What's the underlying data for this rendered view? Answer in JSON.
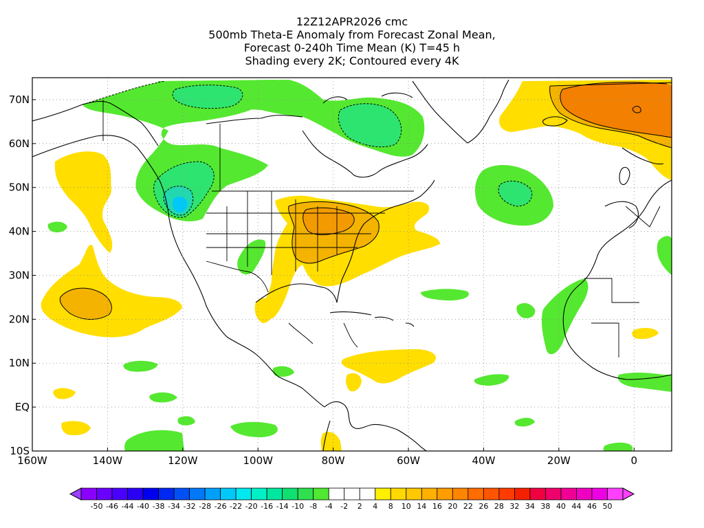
{
  "title": {
    "line1": "12Z12APR2026 cmc",
    "line2": "500mb Theta-E Anomaly from Forecast Zonal Mean,",
    "line3": "Forecast 0-240h Time Mean (K) T=45 h",
    "line4": "Shading every 2K; Contoured every 4K"
  },
  "map": {
    "lon_range": [
      -160,
      10
    ],
    "lat_range": [
      -10,
      75
    ],
    "lon_labels": [
      {
        "lon": -160,
        "text": "160W"
      },
      {
        "lon": -140,
        "text": "140W"
      },
      {
        "lon": -120,
        "text": "120W"
      },
      {
        "lon": -100,
        "text": "100W"
      },
      {
        "lon": -80,
        "text": "80W"
      },
      {
        "lon": -60,
        "text": "60W"
      },
      {
        "lon": -40,
        "text": "40W"
      },
      {
        "lon": -20,
        "text": "20W"
      },
      {
        "lon": 0,
        "text": "0"
      }
    ],
    "lat_labels": [
      {
        "lat": 70,
        "text": "70N"
      },
      {
        "lat": 60,
        "text": "60N"
      },
      {
        "lat": 50,
        "text": "50N"
      },
      {
        "lat": 40,
        "text": "40N"
      },
      {
        "lat": 30,
        "text": "30N"
      },
      {
        "lat": 20,
        "text": "20N"
      },
      {
        "lat": 10,
        "text": "10N"
      },
      {
        "lat": 0,
        "text": "EQ"
      },
      {
        "lat": -10,
        "text": "10S"
      }
    ],
    "anomaly_regions": [
      {
        "name": "gulf-of-alaska-negative",
        "value": -8,
        "color": "#55e830"
      },
      {
        "name": "pacific-northwest-negative-core",
        "value": -14,
        "color": "#22d8b0"
      },
      {
        "name": "hudson-bay-negative",
        "value": -10,
        "color": "#2ee470"
      },
      {
        "name": "baffin-negative",
        "value": -10,
        "color": "#2ee470"
      },
      {
        "name": "eastern-us-positive",
        "value": 10,
        "color": "#f2c400"
      },
      {
        "name": "eastern-us-positive-core",
        "value": 16,
        "color": "#f39a00"
      },
      {
        "name": "central-pacific-positive",
        "value": 8,
        "color": "#ffde00"
      },
      {
        "name": "central-pacific-positive-core",
        "value": 14,
        "color": "#f4b300"
      },
      {
        "name": "north-atlantic-negative",
        "value": -8,
        "color": "#55e830"
      },
      {
        "name": "greenland-iceland-positive",
        "value": 20,
        "color": "#f38000"
      },
      {
        "name": "west-africa-negative",
        "value": -8,
        "color": "#55e830"
      }
    ]
  },
  "colorbar": {
    "labels": [
      "-50",
      "-46",
      "-44",
      "-40",
      "-38",
      "-34",
      "-32",
      "-28",
      "-26",
      "-22",
      "-20",
      "-16",
      "-14",
      "-10",
      "-8",
      "-4",
      "-2",
      "2",
      "4",
      "8",
      "10",
      "14",
      "16",
      "20",
      "22",
      "26",
      "28",
      "32",
      "34",
      "38",
      "40",
      "44",
      "46",
      "50"
    ],
    "colors": [
      "#8a00ff",
      "#6a00ff",
      "#4a00ff",
      "#2a00f5",
      "#0000ee",
      "#0028f0",
      "#0050f5",
      "#0078f8",
      "#00a0fa",
      "#00c8f8",
      "#00e8f0",
      "#00f0c8",
      "#00e8a0",
      "#10e070",
      "#30e050",
      "#50e830",
      "#ffffff",
      "#ffffff",
      "#ffffff",
      "#fff000",
      "#ffd800",
      "#ffc800",
      "#ffb000",
      "#ff9c00",
      "#ff8400",
      "#ff6c00",
      "#ff5400",
      "#ff3c00",
      "#f52000",
      "#f00040",
      "#f0006a",
      "#f00094",
      "#f000c0",
      "#ee00e4",
      "#ff40ff"
    ],
    "low_arrow_color": "#9a40ff",
    "high_arrow_color": "#ff40ff"
  }
}
